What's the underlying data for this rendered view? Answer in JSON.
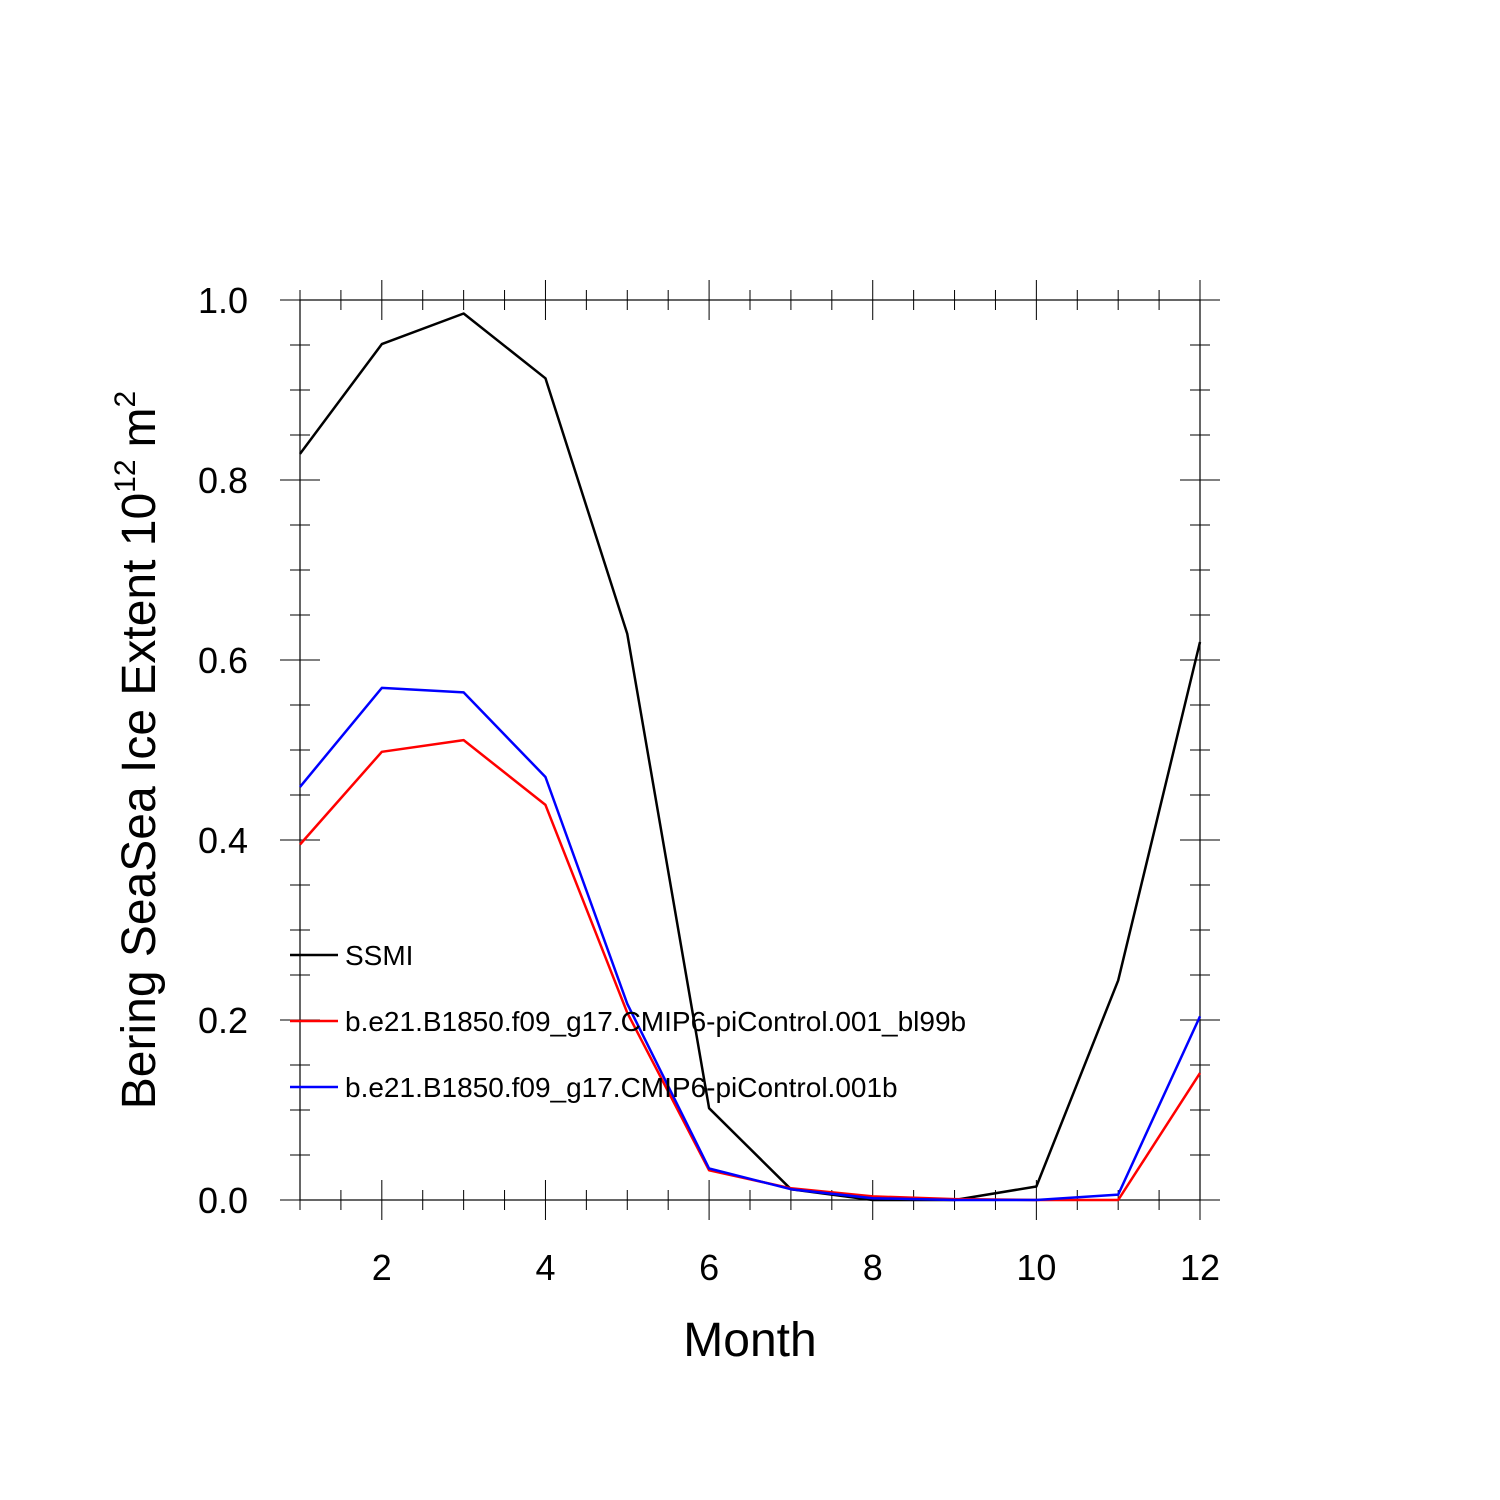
{
  "chart_data": {
    "type": "line",
    "title": "",
    "xlabel": "Month",
    "ylabel": "Bering SeaSea Ice Extent 10",
    "ylabel_exponent": "12",
    "ylabel_unit": "m",
    "ylabel_unit_exponent": "2",
    "xlim": [
      1,
      12
    ],
    "ylim": [
      0,
      1.0
    ],
    "x_ticks": [
      2,
      4,
      6,
      8,
      10,
      12
    ],
    "x_tick_labels": [
      "2",
      "4",
      "6",
      "8",
      "10",
      "12"
    ],
    "y_ticks": [
      0,
      0.2,
      0.4,
      0.6,
      0.8,
      1.0
    ],
    "y_tick_labels": [
      "0.0",
      "0.2",
      "0.4",
      "0.6",
      "0.8",
      "1.0"
    ],
    "grid": false,
    "legend_position": "lower-left",
    "x": [
      1,
      2,
      3,
      4,
      5,
      6,
      7,
      8,
      9,
      10,
      11,
      12
    ],
    "series": [
      {
        "name": "SSMI",
        "color": "#000000",
        "values": [
          0.829,
          0.951,
          0.985,
          0.913,
          0.629,
          0.102,
          0.012,
          0.0,
          0.0,
          0.015,
          0.244,
          0.62
        ]
      },
      {
        "name": "b.e21.B1850.f09_g17.CMIP6-piControl.001_bl99b",
        "color": "#ff0000",
        "values": [
          0.395,
          0.498,
          0.511,
          0.439,
          0.208,
          0.033,
          0.013,
          0.004,
          0.001,
          0.0,
          0.0,
          0.141
        ]
      },
      {
        "name": "b.e21.B1850.f09_g17.CMIP6-piControl.001b",
        "color": "#0000ff",
        "values": [
          0.459,
          0.569,
          0.564,
          0.47,
          0.218,
          0.035,
          0.012,
          0.002,
          0.0,
          0.0,
          0.006,
          0.204
        ]
      }
    ]
  }
}
